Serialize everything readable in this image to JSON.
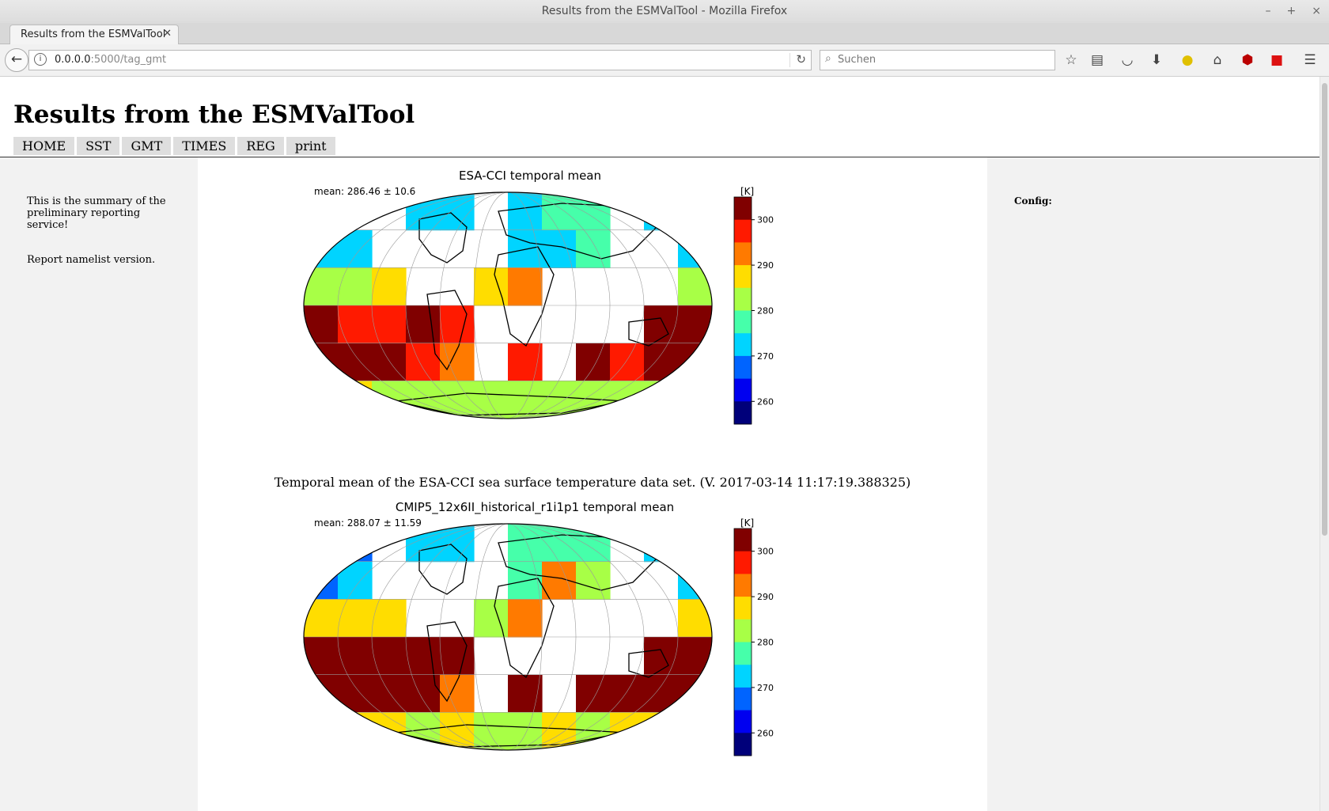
{
  "window": {
    "title": "Results from the ESMValTool - Mozilla Firefox"
  },
  "tab": {
    "label": "Results from the ESMValTool"
  },
  "url": {
    "host": "0.0.0.0",
    "path": ":5000/tag_gmt"
  },
  "search": {
    "placeholder": "Suchen"
  },
  "page": {
    "title": "Results from the ESMValTool",
    "menu": [
      "HOME",
      "SST",
      "GMT",
      "TIMES",
      "REG",
      "print"
    ],
    "left_text": "This is the summary of the preliminary reporting service!",
    "left_text2": "Report namelist version.",
    "config_label": "Config:"
  },
  "plots": [
    {
      "title": "ESA-CCI temporal mean",
      "mean_label": "mean: 286.46 ± 10.6",
      "unit": "[K]",
      "caption": "Temporal mean of the ESA-CCI sea surface temperature data set. (V. 2017-03-14 11:17:19.388325)"
    },
    {
      "title": "CMIP5_12x6II_historical_r1i1p1 temporal mean",
      "mean_label": "mean: 288.07 ± 11.59",
      "unit": "[K]"
    }
  ],
  "colorbar": {
    "ticks": [
      "300",
      "290",
      "280",
      "270",
      "260"
    ],
    "colors": [
      "#800000",
      "#ff1a00",
      "#ff7a00",
      "#ffdd00",
      "#a8ff46",
      "#46ffaa",
      "#00d4ff",
      "#0064ff",
      "#0000f0",
      "#00007a"
    ]
  },
  "chart_data": [
    {
      "type": "heatmap",
      "title": "ESA-CCI temporal mean",
      "unit": "[K]",
      "colorbar_ticks": [
        260,
        270,
        280,
        290,
        300
      ],
      "vrange": [
        255,
        305
      ],
      "mean": 286.46,
      "std": 10.6
    },
    {
      "type": "heatmap",
      "title": "CMIP5_12x6II_historical_r1i1p1 temporal mean",
      "unit": "[K]",
      "colorbar_ticks": [
        260,
        270,
        280,
        290,
        300
      ],
      "vrange": [
        255,
        305
      ],
      "mean": 288.07,
      "std": 11.59
    }
  ]
}
